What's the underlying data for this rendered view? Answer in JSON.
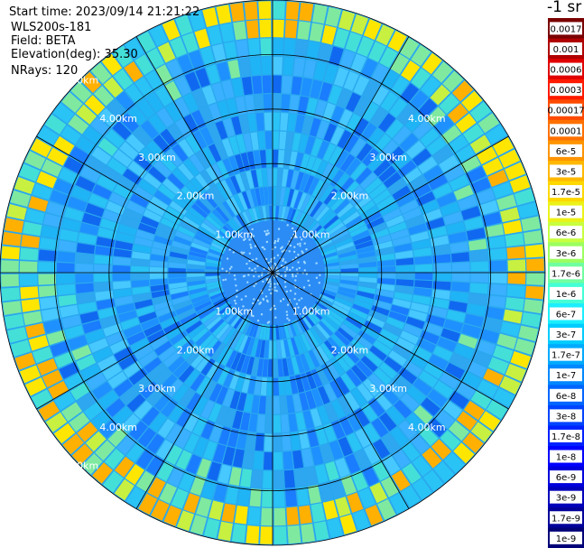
{
  "header": {
    "start_time": "Start time: 2023/09/14 21:21:22",
    "site": "WLS200s-181",
    "field": "Field: BETA",
    "elevation": "Elevation(deg): 35.30",
    "nrays": "NRays: 120"
  },
  "chart_data": {
    "type": "polar-ppi",
    "field": "BETA",
    "rays": 120,
    "elevation_deg": 35.3,
    "range_max_km": 5.0,
    "range_rings_km": [
      1,
      2,
      3,
      4,
      5
    ],
    "ring_labels": [
      "1.00km",
      "2.00km",
      "3.00km",
      "4.00km",
      "5.00km"
    ],
    "spokes_deg": [
      0,
      30,
      60,
      90,
      120,
      150,
      180,
      210,
      240,
      270,
      300,
      330
    ],
    "colorbar": {
      "title": "-1 sr",
      "ticks": [
        "0.0017",
        "0.001",
        "0.0006",
        "0.0003",
        "0.00017",
        "0.0001",
        "6e-5",
        "3e-5",
        "1.7e-5",
        "1e-5",
        "6e-6",
        "3e-6",
        "1.7e-6",
        "1e-6",
        "6e-7",
        "3e-7",
        "1.7e-7",
        "1e-7",
        "6e-8",
        "3e-8",
        "1.7e-8",
        "1e-8",
        "6e-9",
        "3e-9",
        "1.7e-9",
        "1e-9"
      ],
      "colors": [
        "#7a0000",
        "#b00000",
        "#e00000",
        "#ff1a00",
        "#ff4a00",
        "#ff7000",
        "#ff9400",
        "#ffb800",
        "#ffd800",
        "#ecf218",
        "#c8ff40",
        "#9cff60",
        "#70ffa0",
        "#44ffd6",
        "#1ceeff",
        "#00ccff",
        "#00aaff",
        "#0088ff",
        "#0066ff",
        "#0044ff",
        "#0022ff",
        "#0000ff",
        "#0000dd",
        "#0000bb",
        "#00009a",
        "#000078"
      ]
    }
  }
}
